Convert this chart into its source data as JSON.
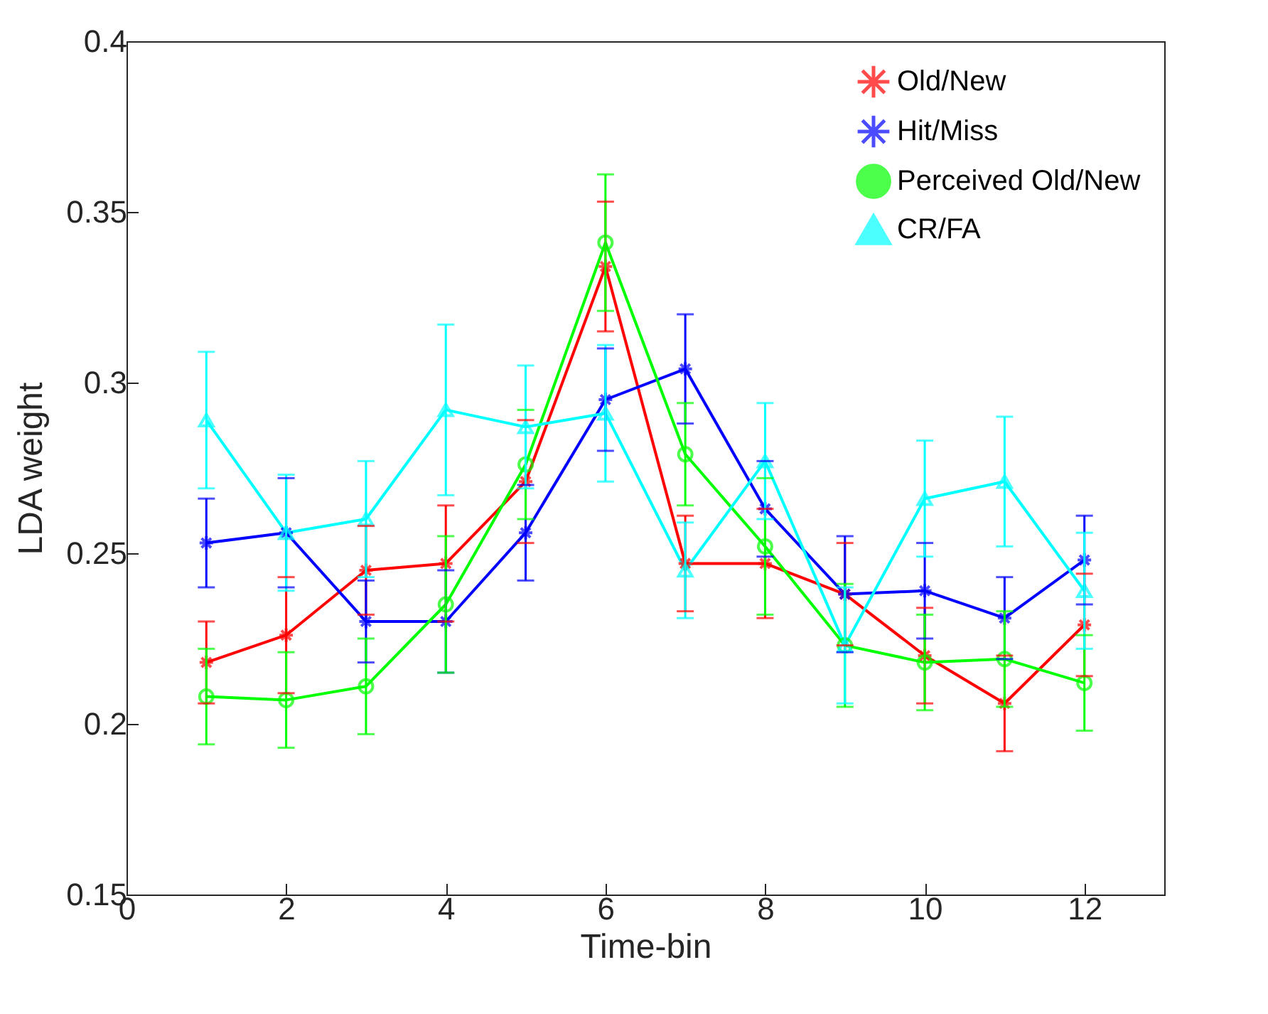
{
  "chart_data": {
    "type": "line",
    "xlabel": "Time-bin",
    "ylabel": "LDA weight",
    "x": [
      1,
      2,
      3,
      4,
      5,
      6,
      7,
      8,
      9,
      10,
      11,
      12
    ],
    "xlim": [
      0,
      13
    ],
    "xticks": [
      0,
      2,
      4,
      6,
      8,
      10,
      12
    ],
    "ylim": [
      0.15,
      0.4
    ],
    "yticks": [
      0.15,
      0.2,
      0.25,
      0.3,
      0.35,
      0.4
    ],
    "grid": false,
    "legend": "top right",
    "line_style": "solid",
    "series": [
      {
        "name": "Old/New",
        "color": "#ff0000",
        "marker": "cross",
        "values": [
          0.218,
          0.226,
          0.245,
          0.247,
          0.271,
          0.334,
          0.247,
          0.247,
          0.238,
          0.22,
          0.206,
          0.229
        ],
        "errors": [
          0.012,
          0.017,
          0.013,
          0.017,
          0.018,
          0.019,
          0.014,
          0.016,
          0.015,
          0.014,
          0.014,
          0.015
        ]
      },
      {
        "name": "Hit/Miss",
        "color": "#0000ff",
        "marker": "cross",
        "values": [
          0.253,
          0.256,
          0.23,
          0.23,
          0.256,
          0.295,
          0.304,
          0.263,
          0.238,
          0.239,
          0.231,
          0.248
        ],
        "errors": [
          0.013,
          0.016,
          0.012,
          0.015,
          0.014,
          0.015,
          0.016,
          0.014,
          0.017,
          0.014,
          0.012,
          0.013
        ]
      },
      {
        "name": "Perceived Old/New",
        "color": "#00ff00",
        "marker": "circle",
        "values": [
          0.208,
          0.207,
          0.211,
          0.235,
          0.276,
          0.341,
          0.279,
          0.252,
          0.223,
          0.218,
          0.219,
          0.212
        ],
        "errors": [
          0.014,
          0.014,
          0.014,
          0.02,
          0.016,
          0.02,
          0.015,
          0.02,
          0.018,
          0.014,
          0.014,
          0.014
        ]
      },
      {
        "name": "CR/FA",
        "color": "#00ffff",
        "marker": "triangle",
        "values": [
          0.289,
          0.256,
          0.26,
          0.292,
          0.287,
          0.291,
          0.245,
          0.277,
          0.223,
          0.266,
          0.271,
          0.239
        ],
        "errors": [
          0.02,
          0.017,
          0.017,
          0.025,
          0.018,
          0.02,
          0.014,
          0.017,
          0.017,
          0.017,
          0.019,
          0.017
        ]
      }
    ]
  }
}
